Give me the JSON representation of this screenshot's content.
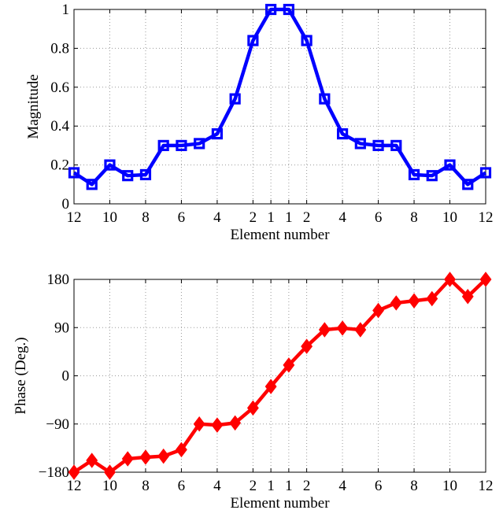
{
  "chart_data": [
    {
      "type": "line",
      "xlabel": "Element number",
      "ylabel": "Magnitude",
      "color": "#0000ff",
      "marker": "square",
      "grid": true,
      "ylim": [
        0,
        1
      ],
      "yticks": [
        0,
        0.2,
        0.4,
        0.6,
        0.8,
        1
      ],
      "ytick_labels": [
        "0",
        "0.2",
        "0.4",
        "0.6",
        "0.8",
        "1"
      ],
      "xtick_labels": [
        "12",
        "10",
        "8",
        "6",
        "4",
        "2",
        "1",
        "1",
        "2",
        "4",
        "6",
        "8",
        "10",
        "12"
      ],
      "values": [
        0.16,
        0.1,
        0.2,
        0.145,
        0.15,
        0.3,
        0.3,
        0.31,
        0.36,
        0.54,
        0.84,
        1.0,
        1.0,
        0.84,
        0.54,
        0.36,
        0.31,
        0.3,
        0.3,
        0.15,
        0.145,
        0.2,
        0.1,
        0.16
      ]
    },
    {
      "type": "line",
      "xlabel": "Element number",
      "ylabel": "Phase (Deg.)",
      "color": "#ff0000",
      "marker": "diamond",
      "grid": true,
      "ylim": [
        -180,
        180
      ],
      "yticks": [
        -180,
        -90,
        0,
        90,
        180
      ],
      "ytick_labels": [
        "−180",
        "−90",
        "0",
        "90",
        "180"
      ],
      "xtick_labels": [
        "12",
        "10",
        "8",
        "6",
        "4",
        "2",
        "1",
        "1",
        "2",
        "4",
        "6",
        "8",
        "10",
        "12"
      ],
      "values": [
        -180,
        -158,
        -180,
        -155,
        -152,
        -150,
        -138,
        -90,
        -92,
        -88,
        -60,
        -20,
        20,
        55,
        86,
        89,
        86,
        122,
        136,
        140,
        144,
        180,
        148,
        180
      ]
    }
  ]
}
